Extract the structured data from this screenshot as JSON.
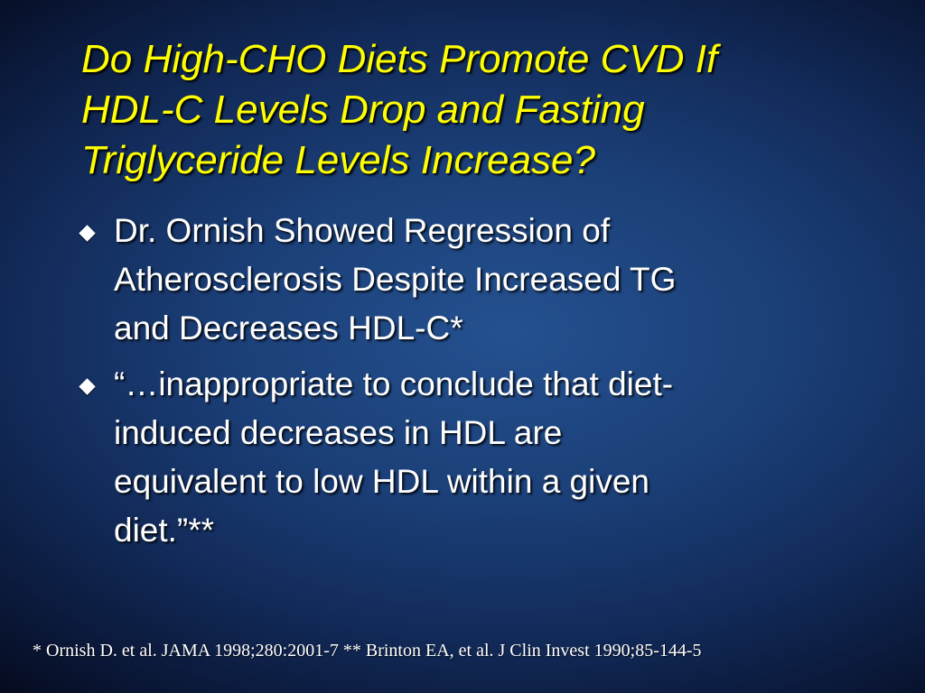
{
  "slide": {
    "title_lines": [
      "Do High-CHO Diets Promote CVD If",
      "HDL-C Levels Drop and Fasting",
      "Triglyceride Levels Increase?"
    ],
    "bullets": [
      {
        "lines": [
          "Dr. Ornish Showed Regression of",
          "Atherosclerosis Despite Increased TG",
          "and Decreases HDL-C*"
        ]
      },
      {
        "lines": [
          "“…inappropriate to conclude that diet-",
          "induced decreases in HDL are",
          "equivalent to low HDL within a given",
          "diet.”**"
        ]
      }
    ],
    "footnote": "* Ornish D. et al. JAMA 1998;280:2001-7 ** Brinton EA, et al. J Clin Invest 1990;85-144-5",
    "colors": {
      "title": "#ffff00",
      "body_text": "#ffffff",
      "background_center": "#24518f",
      "background_edge": "#050a1c"
    },
    "icons": {
      "bullet_marker": "diamond-bullet-icon"
    }
  }
}
